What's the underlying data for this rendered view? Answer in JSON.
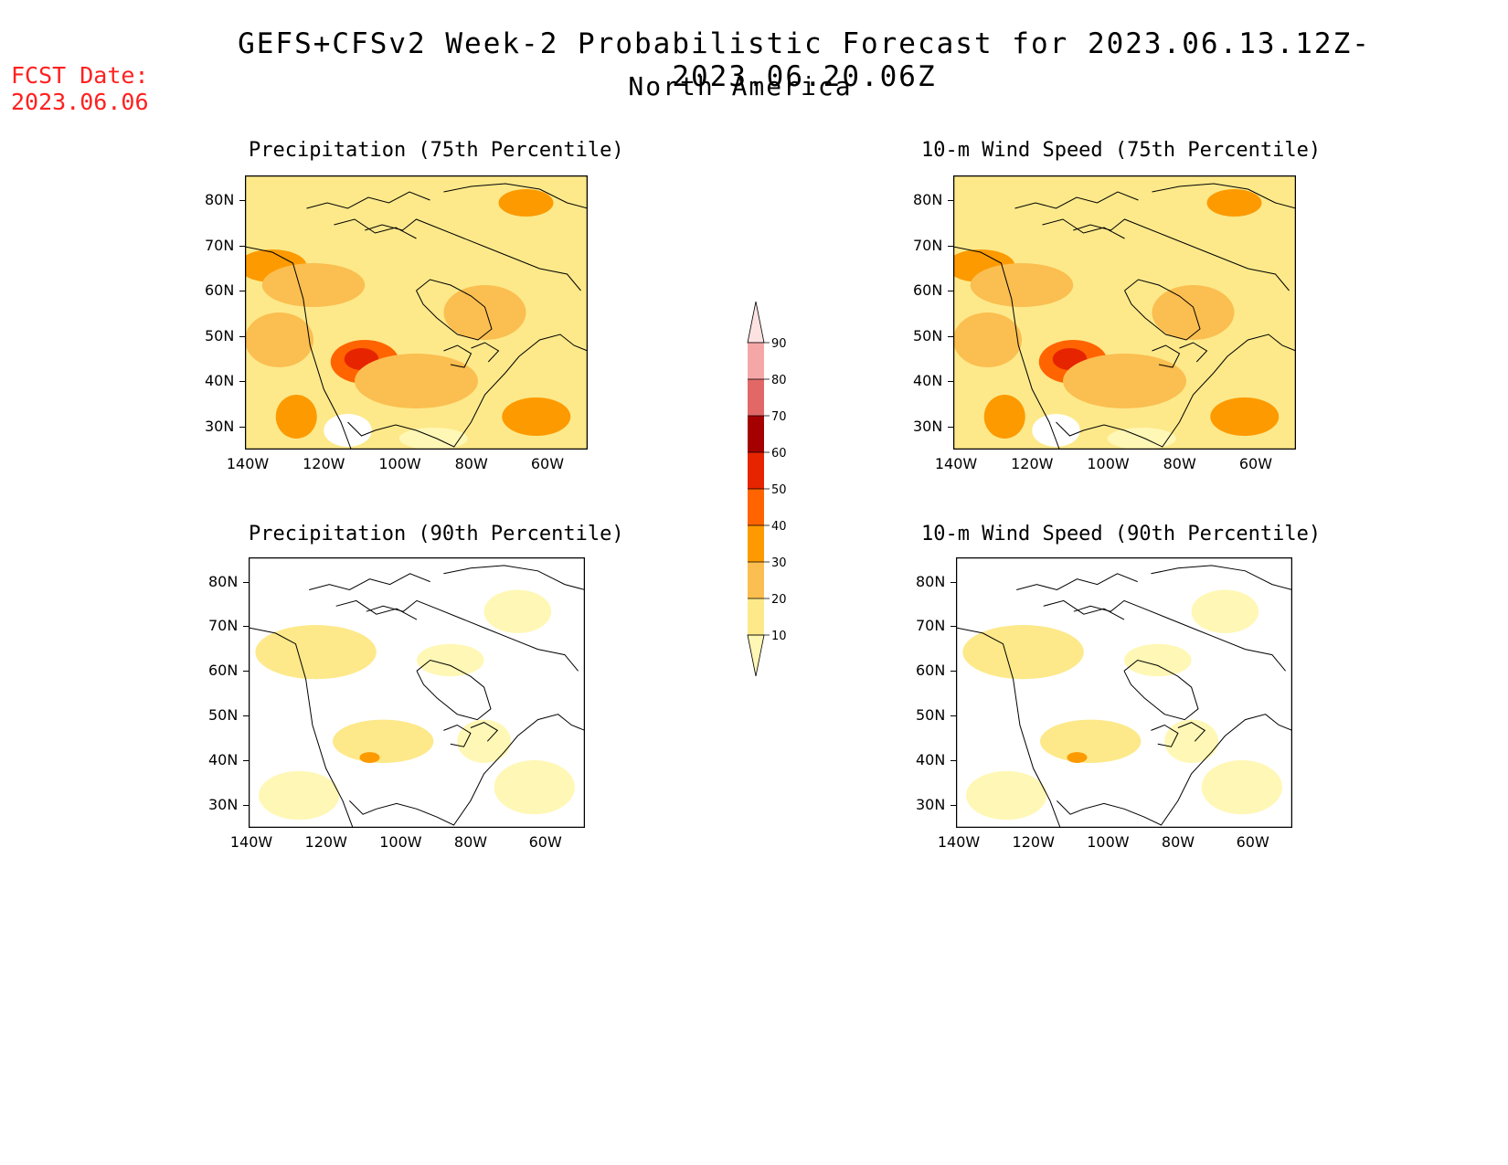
{
  "header": {
    "title": "GEFS+CFSv2 Week-2 Probabilistic Forecast for 2023.06.13.12Z-2023.06.20.06Z",
    "subtitle": "North America",
    "fcst_label": "FCST Date:",
    "fcst_date": "2023.06.06"
  },
  "panels": [
    {
      "title": "Precipitation (75th Percentile)",
      "fill": "high"
    },
    {
      "title": "10-m Wind Speed (75th Percentile)",
      "fill": "high"
    },
    {
      "title": "Precipitation (90th Percentile)",
      "fill": "low"
    },
    {
      "title": "10-m Wind Speed (90th Percentile)",
      "fill": "low"
    }
  ],
  "axes": {
    "lat_ticks": [
      "80N",
      "70N",
      "60N",
      "50N",
      "40N",
      "30N"
    ],
    "lon_ticks": [
      "140W",
      "120W",
      "100W",
      "80W",
      "60W"
    ]
  },
  "colorbar": {
    "levels": [
      "10",
      "20",
      "30",
      "40",
      "50",
      "60",
      "70",
      "80",
      "90"
    ],
    "colors": [
      "#fff7b5",
      "#fde98a",
      "#fbbe50",
      "#fd9a00",
      "#ff6400",
      "#e62400",
      "#a50000",
      "#e26868",
      "#f5a7a7",
      "#fde2e2"
    ]
  }
}
